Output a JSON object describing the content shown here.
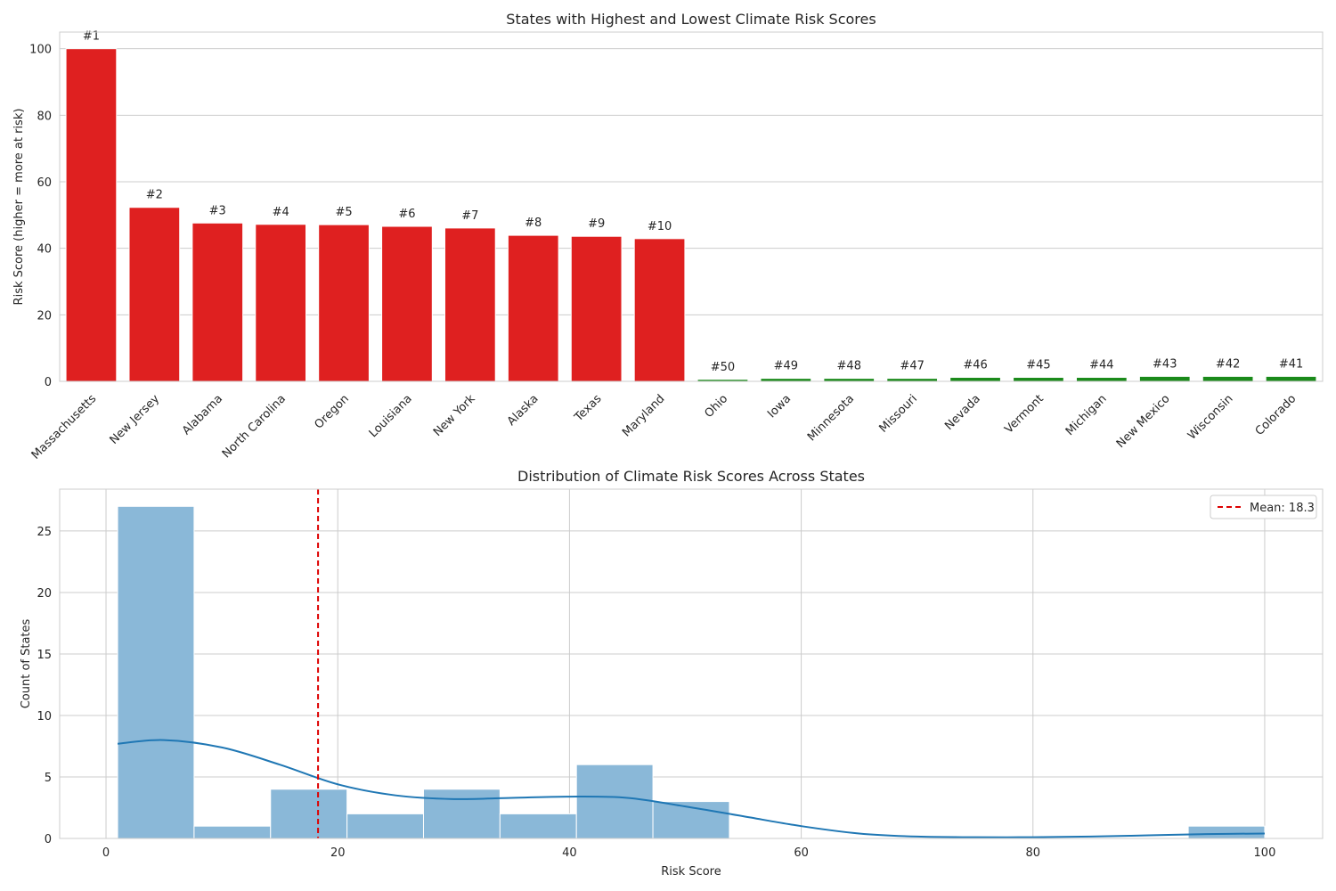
{
  "chart_data": [
    {
      "type": "bar",
      "title": "States with Highest and Lowest Climate Risk Scores",
      "ylabel": "Risk Score (higher = more at risk)",
      "xlabel": "",
      "ylim": [
        0,
        105
      ],
      "yticks": [
        0,
        20,
        40,
        60,
        80,
        100
      ],
      "grid": "horizontal",
      "colors": {
        "highest": "#df2020",
        "lowest": "#1a8a1a"
      },
      "bars": [
        {
          "state": "Massachusetts",
          "value": 100.0,
          "rank": "#1",
          "group": "highest"
        },
        {
          "state": "New Jersey",
          "value": 52.3,
          "rank": "#2",
          "group": "highest"
        },
        {
          "state": "Alabama",
          "value": 47.6,
          "rank": "#3",
          "group": "highest"
        },
        {
          "state": "North Carolina",
          "value": 47.2,
          "rank": "#4",
          "group": "highest"
        },
        {
          "state": "Oregon",
          "value": 47.1,
          "rank": "#5",
          "group": "highest"
        },
        {
          "state": "Louisiana",
          "value": 46.6,
          "rank": "#6",
          "group": "highest"
        },
        {
          "state": "New York",
          "value": 46.1,
          "rank": "#7",
          "group": "highest"
        },
        {
          "state": "Alaska",
          "value": 43.9,
          "rank": "#8",
          "group": "highest"
        },
        {
          "state": "Texas",
          "value": 43.6,
          "rank": "#9",
          "group": "highest"
        },
        {
          "state": "Maryland",
          "value": 42.9,
          "rank": "#10",
          "group": "highest"
        },
        {
          "state": "Ohio",
          "value": 0.6,
          "rank": "#50",
          "group": "lowest"
        },
        {
          "state": "Iowa",
          "value": 0.9,
          "rank": "#49",
          "group": "lowest"
        },
        {
          "state": "Minnesota",
          "value": 0.9,
          "rank": "#48",
          "group": "lowest"
        },
        {
          "state": "Missouri",
          "value": 0.9,
          "rank": "#47",
          "group": "lowest"
        },
        {
          "state": "Nevada",
          "value": 1.2,
          "rank": "#46",
          "group": "lowest"
        },
        {
          "state": "Vermont",
          "value": 1.2,
          "rank": "#45",
          "group": "lowest"
        },
        {
          "state": "Michigan",
          "value": 1.2,
          "rank": "#44",
          "group": "lowest"
        },
        {
          "state": "New Mexico",
          "value": 1.5,
          "rank": "#43",
          "group": "lowest"
        },
        {
          "state": "Wisconsin",
          "value": 1.5,
          "rank": "#42",
          "group": "lowest"
        },
        {
          "state": "Colorado",
          "value": 1.5,
          "rank": "#41",
          "group": "lowest"
        }
      ]
    },
    {
      "type": "histogram",
      "title": "Distribution of Climate Risk Scores Across States",
      "xlabel": "Risk Score",
      "ylabel": "Count of States",
      "xlim": [
        -4,
        105
      ],
      "ylim": [
        0,
        28.4
      ],
      "xticks": [
        0,
        20,
        40,
        60,
        80,
        100
      ],
      "yticks": [
        0,
        5,
        10,
        15,
        20,
        25
      ],
      "grid": "both",
      "bar_color": "#8ab8d8",
      "kde_color": "#1f77b4",
      "mean_color": "#dd0000",
      "bins": [
        {
          "start": 1.0,
          "end": 7.6,
          "count": 27
        },
        {
          "start": 7.6,
          "end": 14.2,
          "count": 1
        },
        {
          "start": 14.2,
          "end": 20.8,
          "count": 4
        },
        {
          "start": 20.8,
          "end": 27.4,
          "count": 2
        },
        {
          "start": 27.4,
          "end": 34.0,
          "count": 4
        },
        {
          "start": 34.0,
          "end": 40.6,
          "count": 2
        },
        {
          "start": 40.6,
          "end": 47.2,
          "count": 6
        },
        {
          "start": 47.2,
          "end": 53.8,
          "count": 3
        },
        {
          "start": 53.8,
          "end": 60.4,
          "count": 0
        },
        {
          "start": 60.4,
          "end": 67.0,
          "count": 0
        },
        {
          "start": 67.0,
          "end": 73.6,
          "count": 0
        },
        {
          "start": 73.6,
          "end": 80.2,
          "count": 0
        },
        {
          "start": 80.2,
          "end": 86.8,
          "count": 0
        },
        {
          "start": 86.8,
          "end": 93.4,
          "count": 0
        },
        {
          "start": 93.4,
          "end": 100.0,
          "count": 1
        }
      ],
      "kde": {
        "x": [
          1,
          5,
          10,
          15,
          20,
          25,
          30,
          35,
          40,
          45,
          50,
          55,
          60,
          65,
          70,
          75,
          80,
          85,
          90,
          95,
          100
        ],
        "y": [
          7.7,
          8.0,
          7.4,
          6.0,
          4.4,
          3.5,
          3.2,
          3.3,
          3.4,
          3.3,
          2.6,
          1.8,
          1.0,
          0.4,
          0.15,
          0.1,
          0.1,
          0.15,
          0.25,
          0.35,
          0.4
        ]
      },
      "mean": 18.3,
      "legend": {
        "label": "Mean: 18.3",
        "position": "top-right"
      }
    }
  ]
}
